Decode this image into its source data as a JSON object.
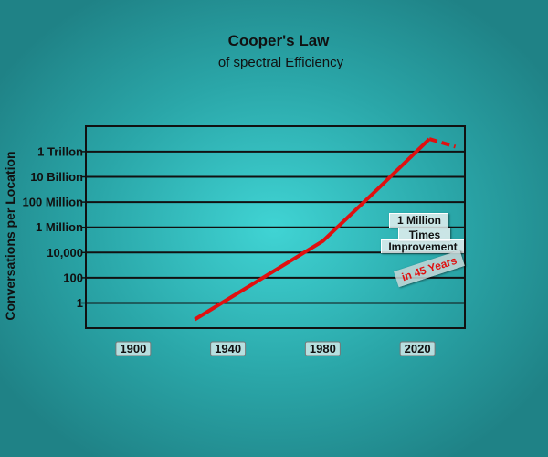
{
  "chart_data": {
    "type": "line",
    "title": "Cooper's Law",
    "subtitle": "of spectral Efficiency",
    "ylabel": "Conversations per Location",
    "xlabel": "",
    "xlim": [
      1880,
      2040
    ],
    "x_ticks": [
      1900,
      1940,
      1980,
      2020
    ],
    "x_tick_labels": [
      "1900",
      "1940",
      "1980",
      "2020"
    ],
    "y_scale": "log",
    "ylim": [
      0.01,
      10000000000000.0
    ],
    "y_ticks": [
      1,
      100,
      10000,
      1000000,
      100000000,
      10000000000,
      1000000000000
    ],
    "y_tick_labels": [
      "1",
      "100",
      "10,000",
      "1 Million",
      "100 Million",
      "10 Billion",
      "1 Trillon"
    ],
    "grid": true,
    "series": [
      {
        "color": "#e01010",
        "style": "solid",
        "x": [
          1926,
          1980,
          2003,
          2025
        ],
        "y": [
          0.05,
          80000,
          1000000000,
          10000000000000
        ]
      },
      {
        "color": "#e01010",
        "style": "dashed",
        "x": [
          2025,
          2036
        ],
        "y": [
          10000000000000,
          2500000000000
        ]
      }
    ],
    "annotations": [
      {
        "lines": [
          "1 Million",
          "Times",
          "Improvement"
        ]
      },
      {
        "text": "in 45 Years",
        "color": "#e01010"
      }
    ]
  }
}
